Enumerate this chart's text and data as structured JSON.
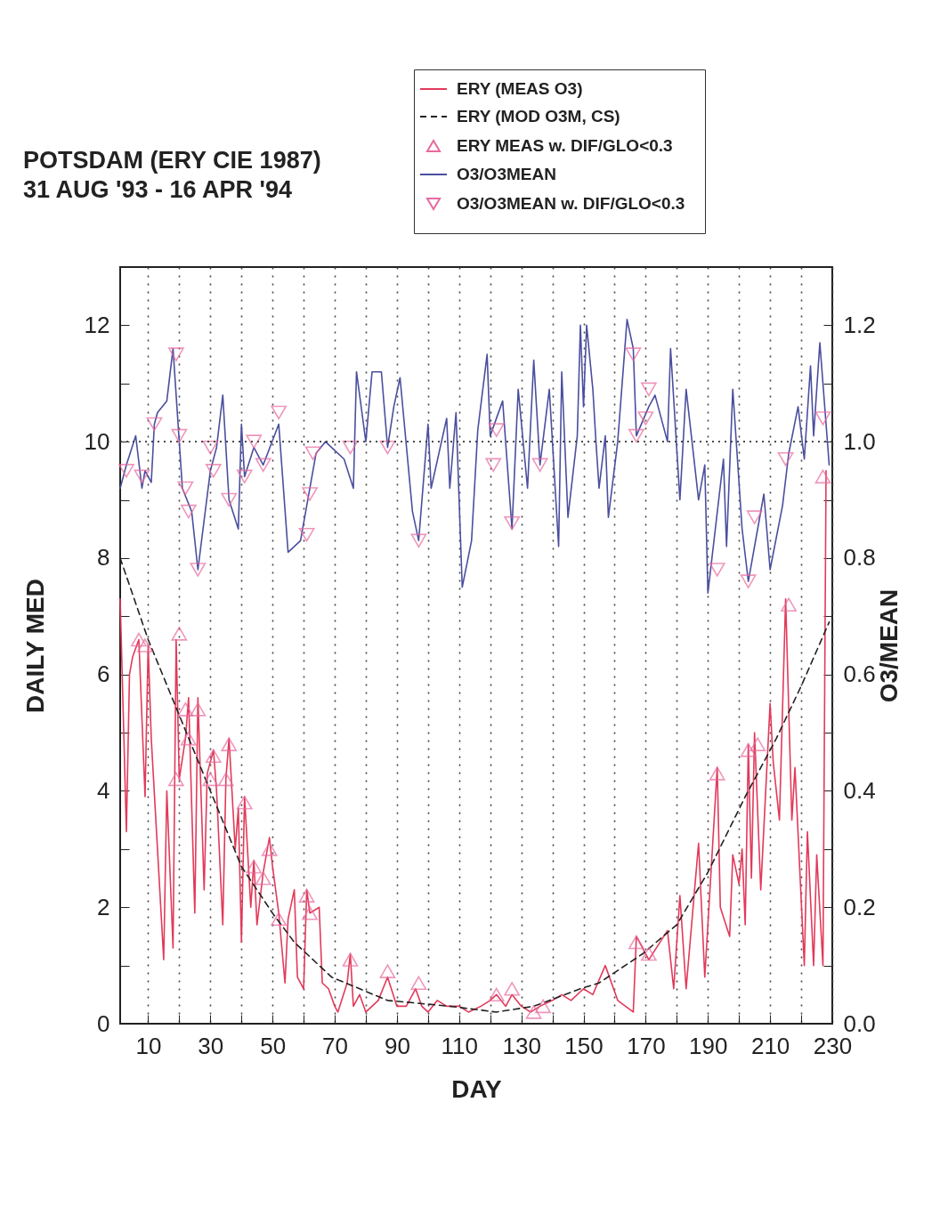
{
  "chart_data": {
    "type": "line",
    "title": "POTSDAM (ERY CIE 1987)",
    "subtitle": "31 AUG '93 - 16 APR '94",
    "xlabel": "DAY",
    "ylabel": "DAILY MED",
    "y2label": "O3/MEAN",
    "xlim": [
      1,
      230
    ],
    "xticks": [
      10,
      {
        "value": 20,
        "label": null
      },
      30,
      {
        "value": 40,
        "label": null
      },
      50,
      {
        "value": 60,
        "label": null
      },
      70,
      {
        "value": 80,
        "label": null
      },
      90,
      {
        "value": 100,
        "label": null
      },
      110,
      {
        "value": 120,
        "label": null
      },
      130,
      {
        "value": 140,
        "label": null
      },
      150,
      {
        "value": 160,
        "label": null
      },
      170,
      {
        "value": 180,
        "label": null
      },
      190,
      {
        "value": 200,
        "label": null
      },
      210,
      {
        "value": 220,
        "label": null
      },
      230
    ],
    "ylim": [
      0,
      13
    ],
    "yticks": [
      0,
      {
        "value": 1,
        "label": null
      },
      2,
      {
        "value": 3,
        "label": null
      },
      4,
      {
        "value": 5,
        "label": null
      },
      6,
      {
        "value": 7,
        "label": null
      },
      8,
      {
        "value": 9,
        "label": null
      },
      10,
      {
        "value": 11,
        "label": null
      },
      12
    ],
    "y2lim": [
      0,
      1.3
    ],
    "y2ticks": [
      {
        "value": 0,
        "label": "0.0"
      },
      {
        "value": 0.1,
        "label": null
      },
      0.2,
      {
        "value": 0.3,
        "label": null
      },
      0.4,
      {
        "value": 0.5,
        "label": null
      },
      0.6,
      {
        "value": 0.7,
        "label": null
      },
      0.8,
      {
        "value": 0.9,
        "label": null
      },
      {
        "value": 1,
        "label": "1.0"
      },
      {
        "value": 1.1,
        "label": null
      },
      1.2
    ],
    "grid": "x",
    "legend": "top right",
    "ref_lines": [
      {
        "axis": "y2",
        "value": 1,
        "color": "#333333",
        "line_style": "dotted"
      }
    ],
    "series": [
      {
        "name": "ERY (MEAS O3)",
        "color": "#e23a5a",
        "x": [
          1,
          3,
          4,
          5,
          7,
          9,
          10,
          11,
          15,
          16,
          18,
          19,
          20,
          22,
          23,
          25,
          26,
          28,
          29,
          31,
          32,
          34,
          35,
          36,
          38,
          39,
          40,
          41,
          43,
          44,
          45,
          47,
          49,
          50,
          52,
          54,
          55,
          57,
          58,
          60,
          61,
          62,
          65,
          66,
          68,
          70,
          71,
          74,
          75,
          76,
          78,
          80,
          84,
          87,
          90,
          93,
          96,
          98,
          100,
          103,
          106,
          110,
          113,
          117,
          120,
          122,
          125,
          127,
          130,
          133,
          136,
          140,
          143,
          146,
          150,
          153,
          157,
          161,
          166,
          167,
          171,
          177,
          179,
          181,
          183,
          187,
          189,
          193,
          194,
          197,
          198,
          200,
          201,
          202,
          203,
          204,
          205,
          207,
          210,
          211,
          213,
          215,
          217,
          218,
          221,
          222,
          224,
          225,
          227,
          228
        ],
        "values": [
          7.3,
          3.3,
          6.0,
          6.3,
          6.6,
          3.9,
          6.5,
          4.9,
          1.1,
          4.0,
          1.3,
          6.6,
          4.2,
          4.9,
          5.6,
          1.9,
          5.6,
          2.3,
          4.3,
          4.7,
          4.0,
          1.7,
          4.2,
          4.9,
          3.0,
          3.7,
          1.4,
          3.9,
          2.0,
          2.8,
          1.7,
          2.6,
          3.2,
          2.7,
          1.9,
          0.7,
          1.8,
          2.3,
          0.8,
          0.6,
          2.3,
          1.9,
          2.0,
          0.7,
          0.6,
          0.3,
          0.2,
          0.7,
          1.2,
          0.3,
          0.5,
          0.2,
          0.4,
          0.8,
          0.3,
          0.3,
          0.6,
          0.3,
          0.2,
          0.4,
          0.3,
          0.3,
          0.2,
          0.3,
          0.4,
          0.5,
          0.3,
          0.5,
          0.3,
          0.2,
          0.3,
          0.4,
          0.5,
          0.4,
          0.6,
          0.5,
          1.0,
          0.4,
          0.2,
          1.5,
          1.1,
          1.6,
          0.6,
          2.2,
          0.6,
          3.1,
          0.8,
          4.4,
          2.0,
          1.5,
          2.9,
          2.4,
          3.0,
          1.7,
          4.8,
          2.5,
          5.0,
          2.3,
          5.5,
          4.5,
          3.5,
          7.3,
          3.5,
          4.4,
          1.0,
          3.3,
          1.0,
          2.9,
          1.0,
          9.5
        ]
      },
      {
        "name": "ERY (MOD O3M, CS)",
        "line_style": "dashed",
        "color": "#222222",
        "x": [
          1,
          10,
          20,
          30,
          40,
          50,
          57,
          69,
          78,
          87,
          107,
          122,
          134,
          149,
          155,
          169,
          180,
          190,
          202,
          212,
          220,
          229
        ],
        "values": [
          8.0,
          6.6,
          5.3,
          4.0,
          2.7,
          1.9,
          1.4,
          0.8,
          0.6,
          0.4,
          0.3,
          0.2,
          0.3,
          0.6,
          0.7,
          1.2,
          1.7,
          2.6,
          3.9,
          4.9,
          5.8,
          6.9
        ]
      },
      {
        "name": "ERY MEAS w. DIF/GLO<0.3",
        "type": "scatter",
        "marker": "triangle",
        "color": "#e86a9e",
        "x": [
          7,
          9,
          19,
          20,
          22,
          23,
          26,
          30,
          31,
          35,
          36,
          41,
          44,
          47,
          49,
          52,
          61,
          62,
          75,
          87,
          97,
          122,
          127,
          134,
          137,
          167,
          171,
          193,
          203,
          206,
          216,
          227
        ],
        "values": [
          6.6,
          6.5,
          4.2,
          6.7,
          5.4,
          4.9,
          5.4,
          4.2,
          4.6,
          4.2,
          4.8,
          3.8,
          2.7,
          2.5,
          3.0,
          1.8,
          2.2,
          1.9,
          1.1,
          0.9,
          0.7,
          0.5,
          0.6,
          0.2,
          0.3,
          1.4,
          1.2,
          4.3,
          4.7,
          4.8,
          7.2,
          9.4
        ]
      },
      {
        "name": "O3/O3MEAN",
        "axis": "y2",
        "color": "#4b4f9e",
        "x": [
          1,
          3,
          6,
          8,
          9,
          11,
          12,
          13,
          16,
          18,
          20,
          21,
          24,
          26,
          30,
          32,
          34,
          36,
          39,
          40,
          41,
          44,
          47,
          52,
          55,
          59,
          62,
          64,
          67,
          73,
          76,
          77,
          80,
          82,
          85,
          87,
          89,
          91,
          95,
          97,
          100,
          101,
          106,
          107,
          109,
          111,
          114,
          116,
          119,
          120,
          124,
          127,
          129,
          132,
          134,
          136,
          139,
          142,
          143,
          145,
          148,
          149,
          150,
          151,
          153,
          154,
          155,
          157,
          158,
          161,
          164,
          166,
          167,
          171,
          173,
          177,
          178,
          181,
          183,
          187,
          189,
          190,
          195,
          196,
          198,
          201,
          203,
          208,
          210,
          214,
          216,
          219,
          221,
          223,
          224,
          226,
          229
        ],
        "values": [
          0.92,
          0.96,
          1.01,
          0.92,
          0.95,
          0.93,
          1.03,
          1.05,
          1.07,
          1.16,
          1.0,
          0.92,
          0.88,
          0.78,
          0.95,
          0.99,
          1.08,
          0.9,
          0.85,
          1.03,
          0.94,
          0.99,
          0.96,
          1.03,
          0.81,
          0.83,
          0.92,
          0.98,
          1.0,
          0.97,
          0.92,
          1.12,
          1.0,
          1.12,
          1.12,
          0.99,
          1.06,
          1.11,
          0.88,
          0.83,
          1.03,
          0.92,
          1.04,
          0.92,
          1.05,
          0.75,
          0.83,
          1.02,
          1.15,
          1.01,
          1.07,
          0.85,
          1.09,
          0.92,
          1.14,
          0.96,
          1.09,
          0.82,
          1.12,
          0.87,
          1.01,
          1.2,
          1.06,
          1.2,
          1.09,
          1.0,
          0.92,
          1.01,
          0.87,
          1.0,
          1.21,
          1.16,
          1.01,
          1.06,
          1.08,
          1.0,
          1.16,
          0.9,
          1.09,
          0.9,
          0.96,
          0.74,
          0.97,
          0.82,
          1.09,
          0.85,
          0.76,
          0.91,
          0.78,
          0.89,
          0.98,
          1.06,
          0.97,
          1.13,
          1.01,
          1.17,
          0.96
        ]
      },
      {
        "name": "O3/O3MEAN w. DIF/GLO<0.3",
        "type": "scatter",
        "axis": "y2",
        "marker": "triangle-down",
        "color": "#e86a9e",
        "x": [
          3,
          8,
          12,
          19,
          20,
          22,
          23,
          26,
          30,
          31,
          36,
          41,
          44,
          47,
          52,
          61,
          62,
          63,
          75,
          87,
          97,
          121,
          122,
          127,
          136,
          166,
          167,
          170,
          171,
          193,
          203,
          205,
          215,
          227
        ],
        "values": [
          0.95,
          0.94,
          1.03,
          1.15,
          1.01,
          0.92,
          0.88,
          0.78,
          0.99,
          0.95,
          0.9,
          0.94,
          1.0,
          0.96,
          1.05,
          0.84,
          0.91,
          0.98,
          0.99,
          0.99,
          0.83,
          0.96,
          1.02,
          0.86,
          0.96,
          1.15,
          1.01,
          1.04,
          1.09,
          0.78,
          0.76,
          0.87,
          0.97,
          1.04
        ]
      }
    ]
  }
}
